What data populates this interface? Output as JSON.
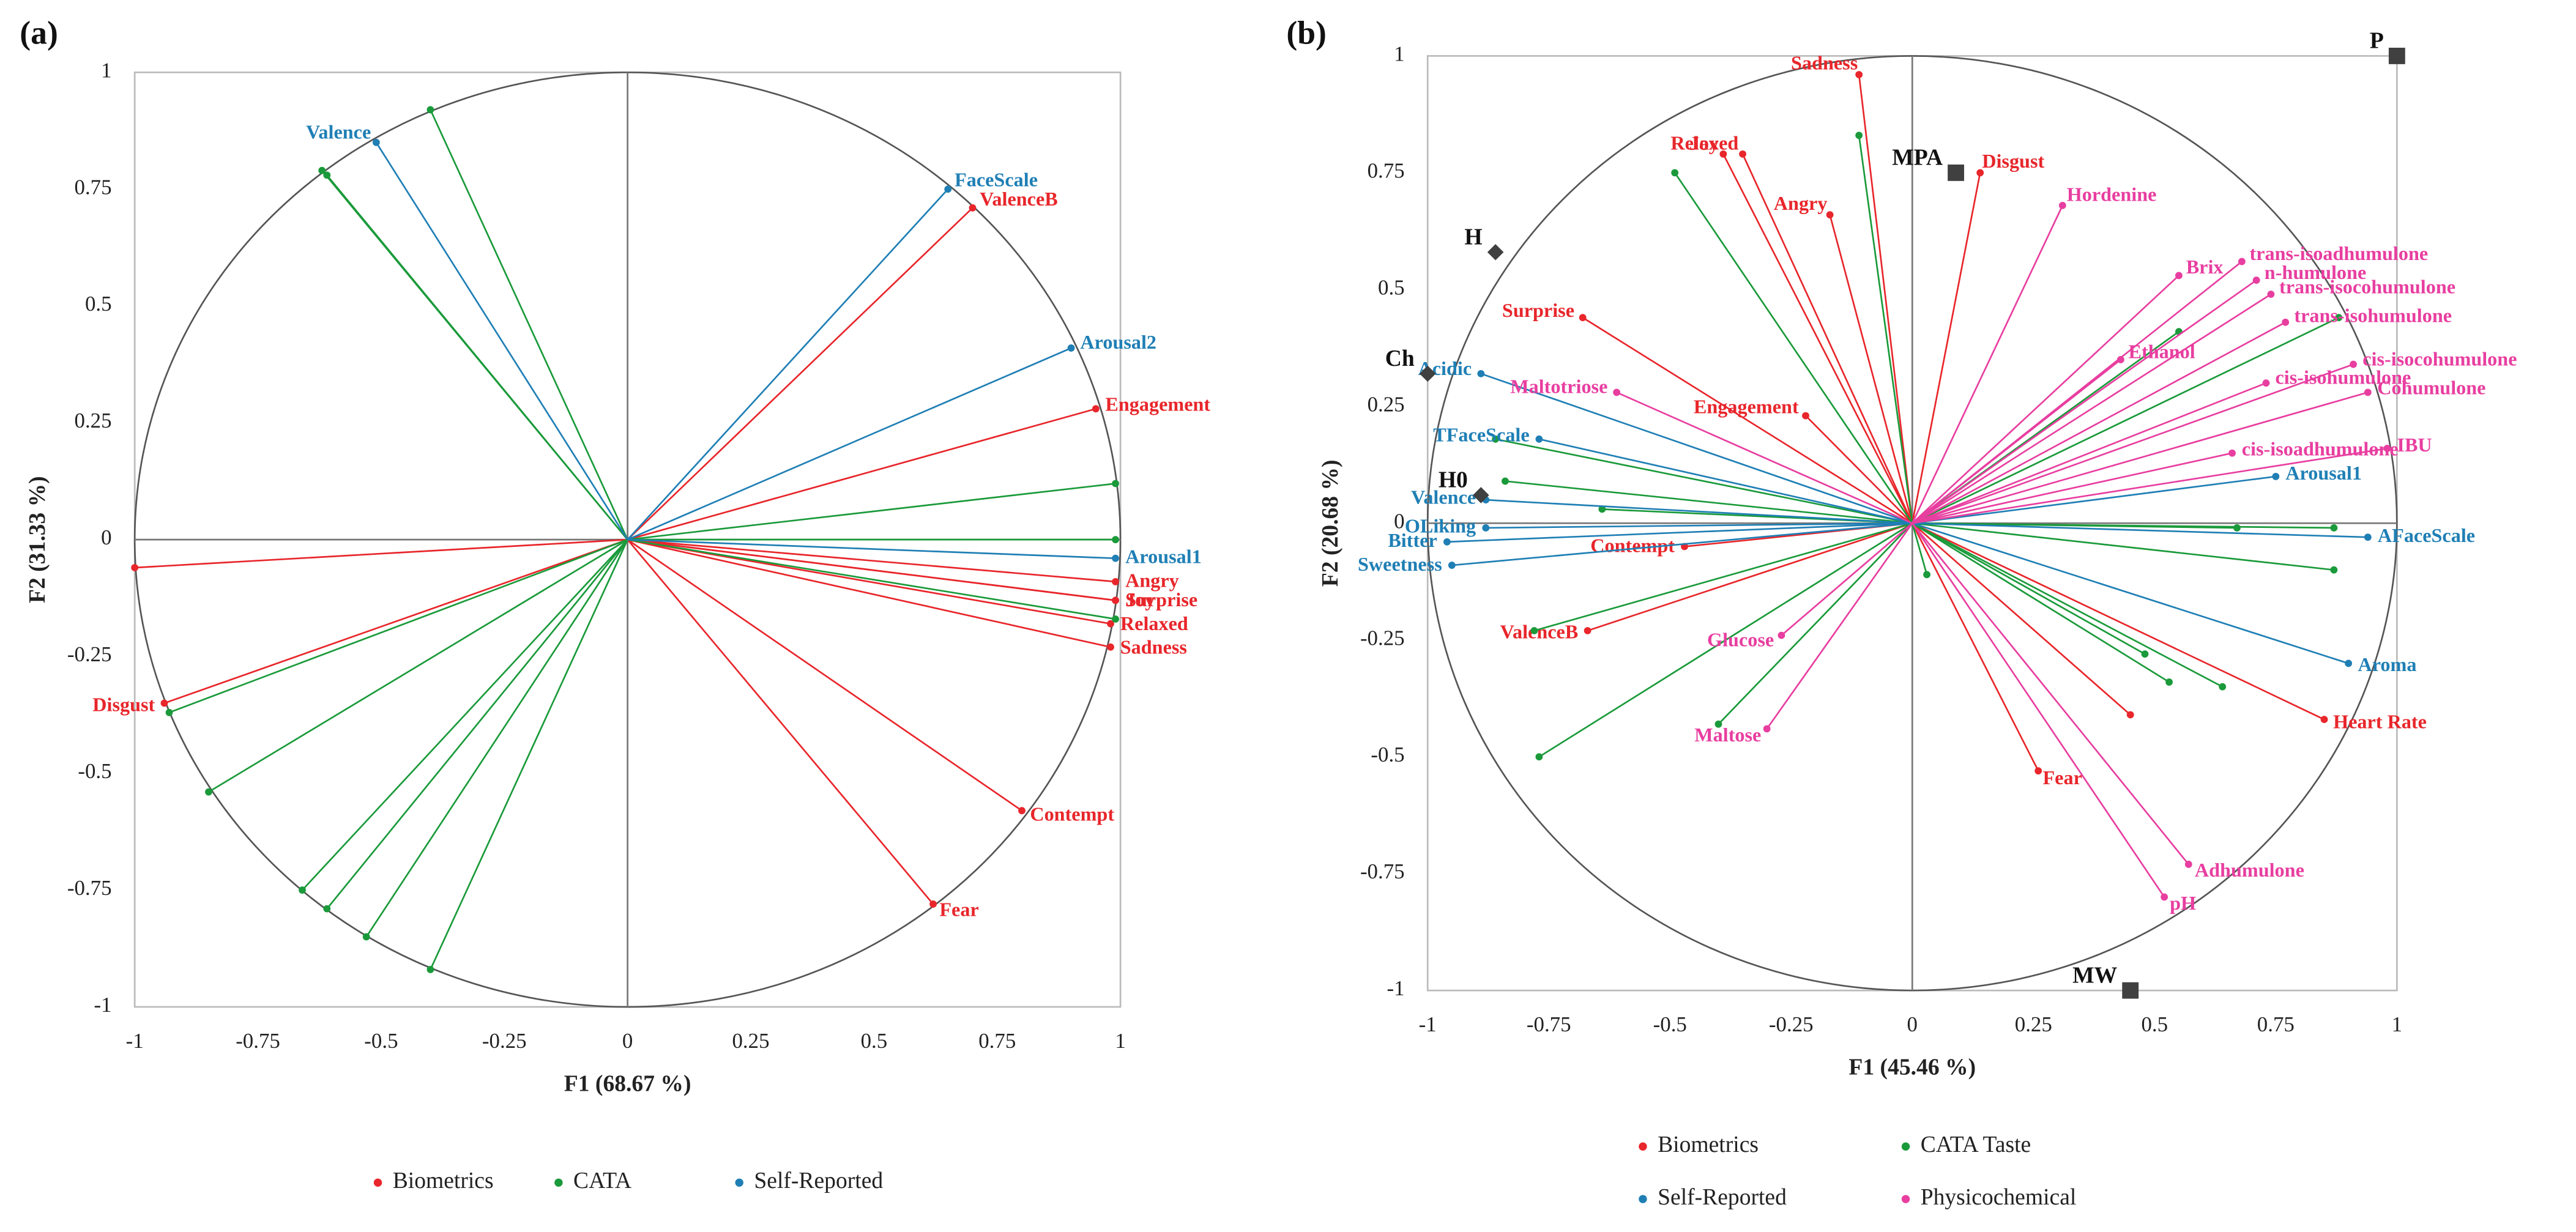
{
  "chart_data": [
    {
      "type": "correlation-circle",
      "panel_label": "(a)",
      "x_label": "F1 (68.67 %)",
      "y_label": "F2 (31.33 %)",
      "xlim": [
        -1,
        1
      ],
      "ylim": [
        -1,
        1
      ],
      "xticks": [
        -1,
        -0.75,
        -0.5,
        -0.25,
        0,
        0.25,
        0.5,
        0.75,
        1
      ],
      "yticks": [
        -1,
        -0.75,
        -0.5,
        -0.25,
        0,
        0.25,
        0.5,
        0.75,
        1
      ],
      "series": [
        {
          "name": "Biometrics",
          "color": "#e8262b",
          "labels": [
            "ValenceB",
            "Engagement",
            "Sadness",
            "Angry",
            "Joy",
            "Surprise",
            "Relaxed",
            "Contempt",
            "Fear",
            "Disgust",
            null
          ],
          "x": [
            0.7,
            0.95,
            0.98,
            0.99,
            0.99,
            0.99,
            0.98,
            0.8,
            0.62,
            -0.94,
            -1.0
          ],
          "values": [
            0.71,
            0.28,
            -0.23,
            -0.09,
            -0.13,
            -0.13,
            -0.18,
            -0.58,
            -0.78,
            -0.35,
            -0.06
          ]
        },
        {
          "name": "CATA",
          "color": "#1a9a3a",
          "labels": [
            null,
            null,
            null,
            null,
            null,
            null,
            null,
            null,
            null,
            null,
            null,
            null
          ],
          "x": [
            -0.62,
            -0.61,
            -0.4,
            0.99,
            0.99,
            0.99,
            -0.93,
            -0.85,
            -0.66,
            -0.61,
            -0.53,
            -0.4
          ],
          "values": [
            0.79,
            0.78,
            0.92,
            0.12,
            0.0,
            -0.17,
            -0.37,
            -0.54,
            -0.75,
            -0.79,
            -0.85,
            -0.92
          ]
        },
        {
          "name": "Self-Reported",
          "color": "#1f7fb5",
          "labels": [
            "Valence",
            "FaceScale",
            "Arousal2",
            "Arousal1"
          ],
          "x": [
            -0.51,
            0.65,
            0.9,
            0.99
          ],
          "values": [
            0.85,
            0.75,
            0.41,
            -0.04
          ]
        }
      ]
    },
    {
      "type": "correlation-circle",
      "panel_label": "(b)",
      "x_label": "F1 (45.46 %)",
      "y_label": "F2 (20.68 %)",
      "xlim": [
        -1,
        1
      ],
      "ylim": [
        -1,
        1
      ],
      "xticks": [
        -1,
        -0.75,
        -0.5,
        -0.25,
        0,
        0.25,
        0.5,
        0.75,
        1
      ],
      "yticks": [
        -1,
        -0.75,
        -0.5,
        -0.25,
        0,
        0.25,
        0.5,
        0.75,
        1
      ],
      "series": [
        {
          "name": "Biometrics",
          "color": "#e8262b",
          "labels": [
            "Sadness",
            "Relaxed",
            "Joy",
            "Angry",
            "Disgust",
            "Surprise",
            "Engagement",
            "Contempt",
            "ValenceB",
            "Fear",
            "Heart Rate",
            null
          ],
          "x": [
            -0.11,
            -0.35,
            -0.39,
            -0.17,
            0.14,
            -0.68,
            -0.22,
            -0.47,
            -0.67,
            0.26,
            0.85,
            0.45
          ],
          "values": [
            0.96,
            0.79,
            0.79,
            0.66,
            0.75,
            0.44,
            0.23,
            -0.05,
            -0.23,
            -0.53,
            -0.42,
            -0.41
          ]
        },
        {
          "name": "CATA Taste",
          "color": "#1a9a3a",
          "labels": [
            null,
            null,
            null,
            null,
            null,
            null,
            null,
            null,
            null,
            null,
            null,
            null,
            null,
            null,
            null,
            null,
            null
          ],
          "x": [
            -0.49,
            -0.11,
            0.88,
            0.55,
            -0.86,
            -0.84,
            -0.64,
            -0.78,
            -0.77,
            -0.4,
            0.03,
            0.87,
            0.87,
            0.67,
            0.48,
            0.53,
            0.64
          ],
          "values": [
            0.75,
            0.83,
            0.44,
            0.41,
            0.18,
            0.09,
            0.03,
            -0.23,
            -0.5,
            -0.43,
            -0.11,
            -0.01,
            -0.1,
            -0.01,
            -0.28,
            -0.34,
            -0.35
          ]
        },
        {
          "name": "Self-Reported",
          "color": "#1f7fb5",
          "labels": [
            "Acidic",
            "TFaceScale",
            "Valence",
            "OLiking",
            "Bitter",
            "Sweetness",
            "Arousal1",
            "AFaceScale",
            "Aroma"
          ],
          "x": [
            -0.89,
            -0.77,
            -0.88,
            -0.88,
            -0.96,
            -0.95,
            0.75,
            0.94,
            0.9
          ],
          "values": [
            0.32,
            0.18,
            0.05,
            -0.01,
            -0.04,
            -0.09,
            0.1,
            -0.03,
            -0.3
          ]
        },
        {
          "name": "Physicochemical",
          "color": "#e83ea0",
          "labels": [
            "Hordenine",
            "trans-isoadhumulone",
            "n-humulone",
            "trans-isocohumulone",
            "trans-isohumulone",
            "Brix",
            "Ethanol",
            "cis-isohumulone",
            "cis-isocohumulone",
            "Cohumulone",
            "cis-isoadhumulone",
            "IBU",
            "Maltotriose",
            "Glucose",
            "Maltose",
            "Adhumulone",
            "pH"
          ],
          "x": [
            0.31,
            0.68,
            0.71,
            0.74,
            0.77,
            0.55,
            0.43,
            0.73,
            0.91,
            0.94,
            0.66,
            0.98,
            -0.61,
            -0.27,
            -0.3,
            0.57,
            0.52
          ],
          "values": [
            0.68,
            0.56,
            0.52,
            0.49,
            0.43,
            0.53,
            0.35,
            0.3,
            0.34,
            0.28,
            0.15,
            0.16,
            0.28,
            -0.24,
            -0.44,
            -0.73,
            -0.8
          ]
        }
      ],
      "observations": {
        "color": "#404040",
        "labels": [
          "P",
          "MPA",
          "H",
          "Ch",
          "H0",
          "MW"
        ],
        "markers": [
          "square",
          "square",
          "diamond",
          "diamond",
          "diamond",
          "square"
        ],
        "x": [
          1.0,
          0.09,
          -0.86,
          -1.0,
          -0.89,
          0.45
        ],
        "values": [
          1.0,
          0.75,
          0.58,
          0.32,
          0.06,
          -1.0
        ]
      }
    }
  ]
}
